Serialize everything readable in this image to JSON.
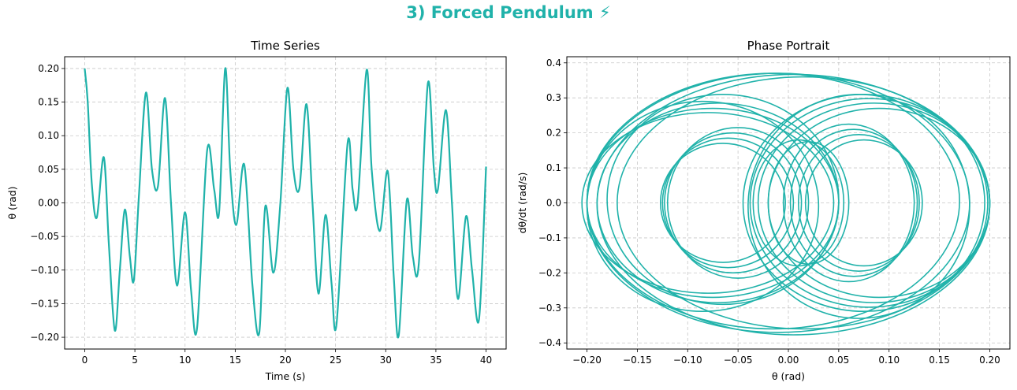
{
  "suptitle": "3) Forced Pendulum ⚡",
  "color": "#20b2aa",
  "chart_data": [
    {
      "type": "line",
      "title": "Time Series",
      "xlabel": "Time (s)",
      "ylabel": "θ (rad)",
      "xlim": [
        -2,
        42
      ],
      "ylim": [
        -0.2175,
        0.2175
      ],
      "xticks": [
        0,
        5,
        10,
        15,
        20,
        25,
        30,
        35,
        40
      ],
      "yticks": [
        -0.2,
        -0.15,
        -0.1,
        -0.05,
        0.0,
        0.05,
        0.1,
        0.15,
        0.2
      ],
      "xticklabels": [
        "0",
        "5",
        "10",
        "15",
        "20",
        "25",
        "30",
        "35",
        "40"
      ],
      "yticklabels": [
        "−0.20",
        "−0.15",
        "−0.10",
        "−0.05",
        "0.00",
        "0.05",
        "0.10",
        "0.15",
        "0.20"
      ],
      "grid": true,
      "series": [
        {
          "x": [
            0,
            0.3,
            0.7,
            1.2,
            1.9,
            2.4,
            3.0,
            3.5,
            4.0,
            4.5,
            4.9,
            5.4,
            6.1,
            6.7,
            7.3,
            8.0,
            8.6,
            9.2,
            10.0,
            10.6,
            11.2,
            12.2,
            12.9,
            13.4,
            14.0,
            14.5,
            15.1,
            15.9,
            16.7,
            17.4,
            18.0,
            18.8,
            19.5,
            20.2,
            20.8,
            21.4,
            22.1,
            22.7,
            23.3,
            24.0,
            24.6,
            25.1,
            26.2,
            26.7,
            27.2,
            28.1,
            28.6,
            29.4,
            30.2,
            30.8,
            31.3,
            32.1,
            32.7,
            33.3,
            34.2,
            34.8,
            35.2,
            36.0,
            36.6,
            37.2,
            38.0,
            38.6,
            39.3,
            40.0
          ],
          "y": [
            0.2,
            0.15,
            0.03,
            -0.022,
            0.068,
            -0.06,
            -0.19,
            -0.1,
            -0.01,
            -0.08,
            -0.115,
            0.01,
            0.164,
            0.05,
            0.025,
            0.156,
            0.0,
            -0.123,
            -0.014,
            -0.13,
            -0.186,
            0.078,
            0.02,
            -0.013,
            0.2,
            0.05,
            -0.033,
            0.057,
            -0.12,
            -0.193,
            -0.005,
            -0.104,
            0.0,
            0.171,
            0.05,
            0.022,
            0.147,
            0.0,
            -0.135,
            -0.018,
            -0.12,
            -0.18,
            0.089,
            0.02,
            0.0,
            0.198,
            0.05,
            -0.042,
            0.047,
            -0.11,
            -0.197,
            0.004,
            -0.08,
            -0.09,
            0.178,
            0.05,
            0.02,
            0.138,
            0.0,
            -0.143,
            -0.02,
            -0.1,
            -0.173,
            0.054
          ]
        }
      ]
    },
    {
      "type": "line",
      "title": "Phase Portrait",
      "xlabel": "θ (rad)",
      "ylabel": "dθ/dt (rad/s)",
      "xlim": [
        -0.22,
        0.22
      ],
      "ylim": [
        -0.4175,
        0.4175
      ],
      "xticks": [
        -0.2,
        -0.15,
        -0.1,
        -0.05,
        0.0,
        0.05,
        0.1,
        0.15,
        0.2
      ],
      "yticks": [
        -0.4,
        -0.3,
        -0.2,
        -0.1,
        0.0,
        0.1,
        0.2,
        0.3,
        0.4
      ],
      "xticklabels": [
        "−0.20",
        "−0.15",
        "−0.10",
        "−0.05",
        "0.00",
        "0.05",
        "0.10",
        "0.15",
        "0.20"
      ],
      "yticklabels": [
        "−0.4",
        "−0.3",
        "−0.2",
        "−0.1",
        "0.0",
        "0.1",
        "0.2",
        "0.3",
        "0.4"
      ],
      "grid": true,
      "loops": [
        {
          "cx": -0.01,
          "cy": 0.0,
          "rx": 0.19,
          "ry": 0.37
        },
        {
          "cx": -0.015,
          "cy": 0.005,
          "rx": 0.185,
          "ry": 0.365
        },
        {
          "cx": 0.005,
          "cy": -0.005,
          "rx": 0.195,
          "ry": 0.372
        },
        {
          "cx": 0.015,
          "cy": 0.0,
          "rx": 0.185,
          "ry": 0.36
        },
        {
          "cx": -0.065,
          "cy": 0.01,
          "rx": 0.115,
          "ry": 0.3
        },
        {
          "cx": -0.07,
          "cy": 0.0,
          "rx": 0.12,
          "ry": 0.285
        },
        {
          "cx": -0.075,
          "cy": 0.0,
          "rx": 0.125,
          "ry": 0.27
        },
        {
          "cx": -0.08,
          "cy": 0.0,
          "rx": 0.125,
          "ry": 0.258
        },
        {
          "cx": -0.085,
          "cy": -0.01,
          "rx": 0.115,
          "ry": 0.3
        },
        {
          "cx": 0.075,
          "cy": 0.0,
          "rx": 0.12,
          "ry": 0.31
        },
        {
          "cx": 0.08,
          "cy": 0.0,
          "rx": 0.118,
          "ry": 0.298
        },
        {
          "cx": 0.085,
          "cy": 0.0,
          "rx": 0.115,
          "ry": 0.285
        },
        {
          "cx": 0.09,
          "cy": 0.0,
          "rx": 0.11,
          "ry": 0.27
        },
        {
          "cx": 0.07,
          "cy": -0.01,
          "rx": 0.11,
          "ry": 0.32
        },
        {
          "cx": -0.05,
          "cy": 0.0,
          "rx": 0.07,
          "ry": 0.215
        },
        {
          "cx": -0.055,
          "cy": 0.0,
          "rx": 0.068,
          "ry": 0.2
        },
        {
          "cx": -0.06,
          "cy": 0.0,
          "rx": 0.065,
          "ry": 0.185
        },
        {
          "cx": -0.065,
          "cy": 0.0,
          "rx": 0.062,
          "ry": 0.17
        },
        {
          "cx": 0.06,
          "cy": 0.0,
          "rx": 0.065,
          "ry": 0.225
        },
        {
          "cx": 0.065,
          "cy": 0.0,
          "rx": 0.063,
          "ry": 0.21
        },
        {
          "cx": 0.07,
          "cy": 0.0,
          "rx": 0.06,
          "ry": 0.195
        },
        {
          "cx": 0.075,
          "cy": 0.0,
          "rx": 0.058,
          "ry": 0.18
        },
        {
          "cx": 0.01,
          "cy": 0.0,
          "rx": 0.045,
          "ry": 0.18
        },
        {
          "cx": 0.02,
          "cy": 0.0,
          "rx": 0.04,
          "ry": 0.175
        }
      ]
    }
  ]
}
